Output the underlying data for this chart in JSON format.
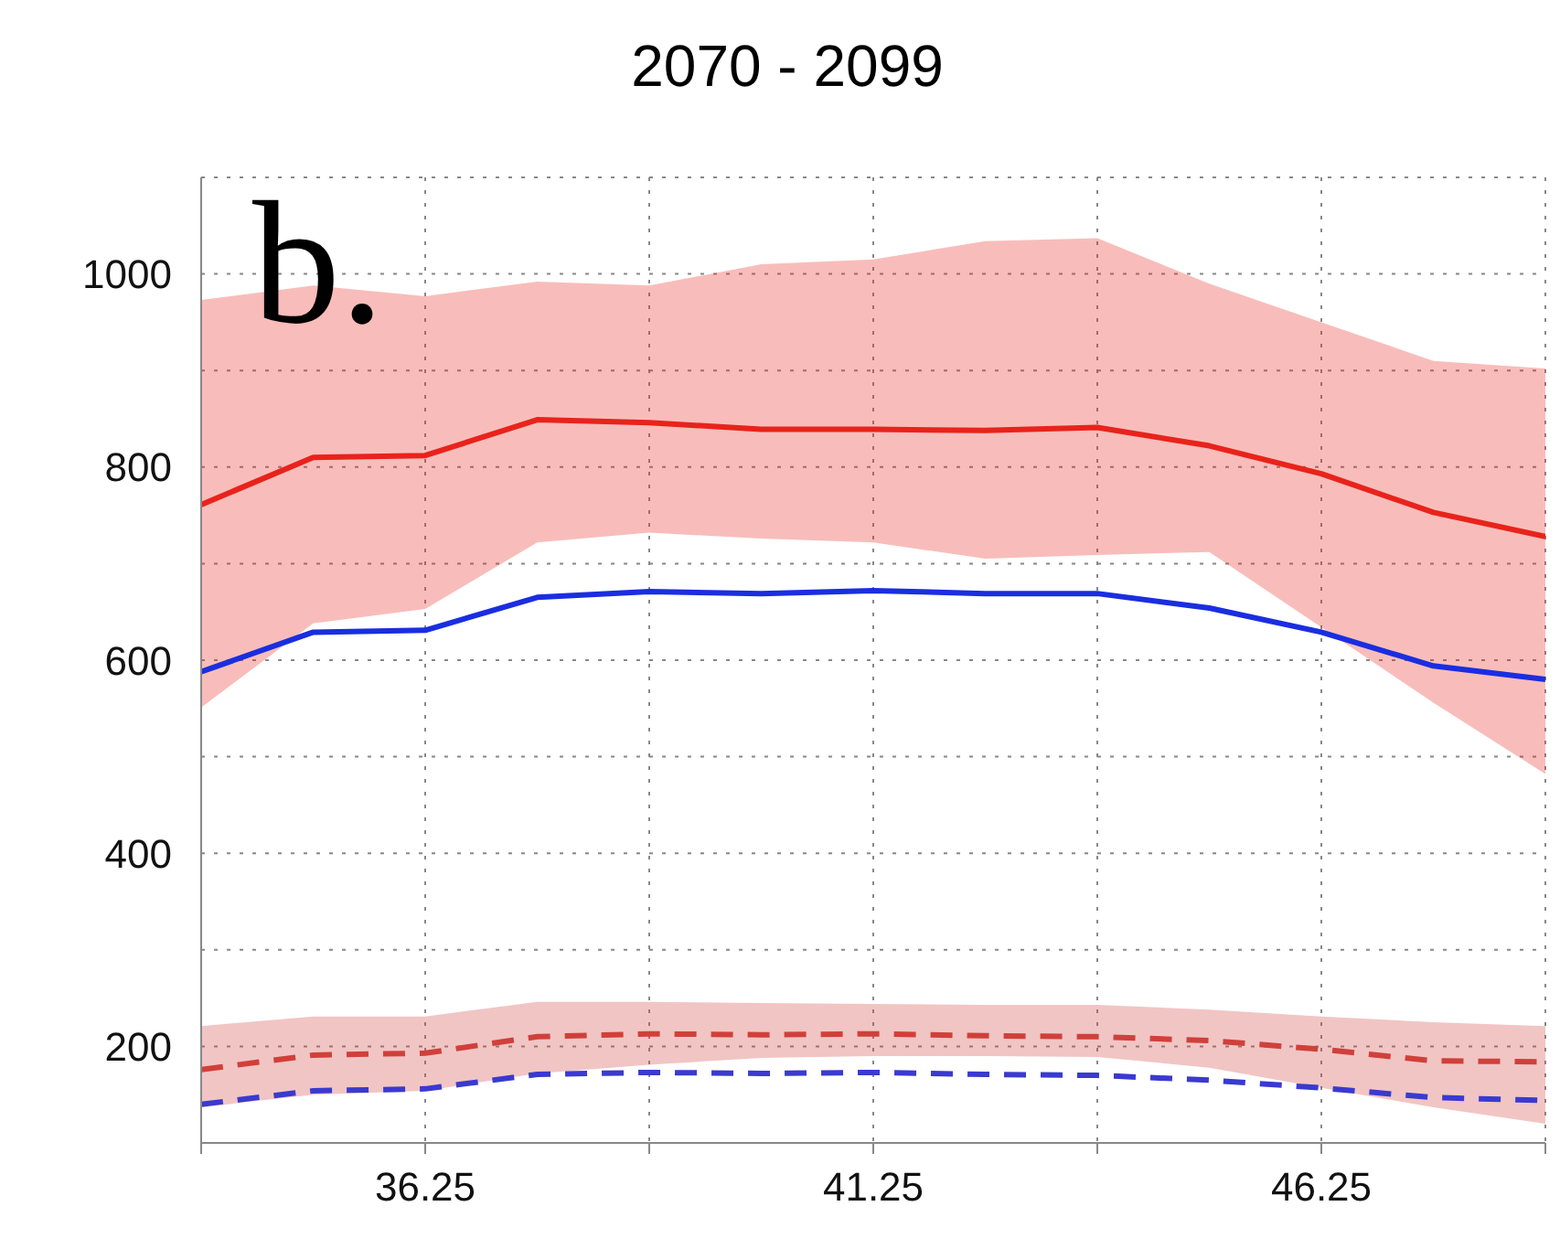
{
  "chart_data": {
    "type": "line",
    "title": "2070 - 2099",
    "annotations": [
      "b."
    ],
    "x": [
      33.75,
      35,
      36.25,
      37.5,
      38.75,
      40,
      41.25,
      42.5,
      43.75,
      45,
      46.25,
      47.5,
      48.75
    ],
    "series": [
      {
        "color": "#e8231b",
        "line_style": "solid",
        "values": [
          761,
          810,
          812,
          849,
          846,
          839,
          839,
          838,
          841,
          822,
          793,
          753,
          728
        ],
        "lower": [
          551,
          638,
          653,
          722,
          732,
          726,
          722,
          705,
          709,
          712,
          634,
          556,
          482
        ],
        "upper": [
          973,
          988,
          977,
          992,
          988,
          1010,
          1015,
          1034,
          1037,
          990,
          950,
          910,
          902
        ]
      },
      {
        "color": "#1a2ee0",
        "line_style": "solid",
        "values": [
          588,
          629,
          631,
          665,
          671,
          669,
          672,
          669,
          669,
          654,
          629,
          594,
          580
        ]
      },
      {
        "color": "#d0403a",
        "line_style": "dashed",
        "values": [
          176,
          191,
          193,
          210,
          213,
          212,
          213,
          211,
          210,
          206,
          197,
          185,
          184
        ],
        "lower": [
          137,
          150,
          154,
          172,
          181,
          188,
          190,
          190,
          189,
          178,
          157,
          137,
          120
        ],
        "upper": [
          221,
          231,
          231,
          246,
          246,
          245,
          244,
          243,
          243,
          238,
          231,
          225,
          221
        ]
      },
      {
        "color": "#3a3ad0",
        "line_style": "dashed",
        "values": [
          140,
          154,
          156,
          171,
          173,
          172,
          173,
          171,
          170,
          165,
          157,
          147,
          144
        ]
      }
    ],
    "xlim": [
      33.75,
      48.75
    ],
    "xticks": [
      {
        "value": 33.75,
        "label": null
      },
      36.25,
      {
        "value": 38.75,
        "label": null
      },
      41.25,
      {
        "value": 43.75,
        "label": null
      },
      46.25,
      {
        "value": 48.75,
        "label": null
      }
    ],
    "ylim": [
      100,
      1100
    ],
    "yticks": [
      {
        "value": 100,
        "label": null
      },
      200,
      {
        "value": 300,
        "label": null
      },
      400,
      {
        "value": 500,
        "label": null
      },
      600,
      {
        "value": 700,
        "label": null
      },
      800,
      {
        "value": 900,
        "label": null
      },
      1000,
      {
        "value": 1100,
        "label": null
      }
    ],
    "grid": true,
    "legend": false,
    "marker": "none"
  }
}
